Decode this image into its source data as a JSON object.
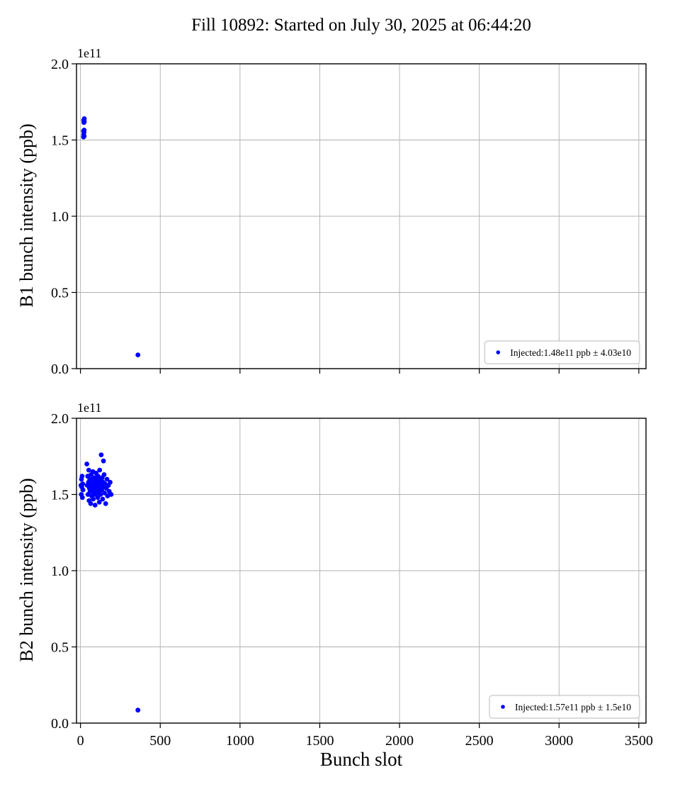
{
  "title": "Fill 10892: Started on July 30, 2025 at 06:44:20",
  "xlabel": "Bunch slot",
  "chart_data": [
    {
      "type": "scatter",
      "ylabel": "B1 bunch intensity (ppb)",
      "offset_text": "1e11",
      "xlim": [
        -25,
        3545
      ],
      "ylim": [
        0,
        2.0
      ],
      "xticks": [
        0,
        500,
        1000,
        1500,
        2000,
        2500,
        3000,
        3500
      ],
      "xtick_labels": [
        "0",
        "500",
        "1000",
        "1500",
        "2000",
        "2500",
        "3000",
        "3500"
      ],
      "yticks": [
        0.0,
        0.5,
        1.0,
        1.5,
        2.0
      ],
      "ytick_labels": [
        "0.0",
        "0.5",
        "1.0",
        "1.5",
        "2.0"
      ],
      "legend_label": "Injected:1.48e11 ppb ± 4.03e10",
      "marker_color": "#0000ff",
      "grid": true,
      "legend_position": "lower right",
      "points": [
        [
          19,
          1.52
        ],
        [
          23,
          1.525
        ],
        [
          20,
          1.535
        ],
        [
          22,
          1.55
        ],
        [
          19,
          1.56
        ],
        [
          23,
          1.565
        ],
        [
          21,
          1.615
        ],
        [
          24,
          1.62
        ],
        [
          20,
          1.63
        ],
        [
          24,
          1.64
        ],
        [
          360,
          0.09
        ]
      ]
    },
    {
      "type": "scatter",
      "ylabel": "B2 bunch intensity (ppb)",
      "offset_text": "1e11",
      "xlim": [
        -25,
        3545
      ],
      "ylim": [
        0,
        2.0
      ],
      "xticks": [
        0,
        500,
        1000,
        1500,
        2000,
        2500,
        3000,
        3500
      ],
      "xtick_labels": [
        "0",
        "500",
        "1000",
        "1500",
        "2000",
        "2500",
        "3000",
        "3500"
      ],
      "yticks": [
        0.0,
        0.5,
        1.0,
        1.5,
        2.0
      ],
      "ytick_labels": [
        "0.0",
        "0.5",
        "1.0",
        "1.5",
        "2.0"
      ],
      "legend_label": "Injected:1.57e11 ppb ± 1.5e10",
      "marker_color": "#0000ff",
      "grid": true,
      "legend_position": "lower right",
      "points": [
        [
          3,
          1.56
        ],
        [
          5,
          1.5
        ],
        [
          6,
          1.6
        ],
        [
          8,
          1.55
        ],
        [
          10,
          1.62
        ],
        [
          12,
          1.48
        ],
        [
          14,
          1.57
        ],
        [
          16,
          1.53
        ],
        [
          40,
          1.7
        ],
        [
          42,
          1.56
        ],
        [
          45,
          1.62
        ],
        [
          47,
          1.5
        ],
        [
          50,
          1.58
        ],
        [
          52,
          1.66
        ],
        [
          54,
          1.46
        ],
        [
          56,
          1.54
        ],
        [
          58,
          1.6
        ],
        [
          60,
          1.52
        ],
        [
          62,
          1.57
        ],
        [
          64,
          1.44
        ],
        [
          66,
          1.63
        ],
        [
          68,
          1.55
        ],
        [
          70,
          1.49
        ],
        [
          72,
          1.6
        ],
        [
          74,
          1.56
        ],
        [
          76,
          1.52
        ],
        [
          78,
          1.65
        ],
        [
          80,
          1.47
        ],
        [
          82,
          1.58
        ],
        [
          84,
          1.54
        ],
        [
          86,
          1.61
        ],
        [
          88,
          1.5
        ],
        [
          90,
          1.56
        ],
        [
          92,
          1.43
        ],
        [
          94,
          1.59
        ],
        [
          96,
          1.53
        ],
        [
          98,
          1.64
        ],
        [
          100,
          1.57
        ],
        [
          102,
          1.51
        ],
        [
          104,
          1.6
        ],
        [
          106,
          1.55
        ],
        [
          108,
          1.48
        ],
        [
          110,
          1.62
        ],
        [
          112,
          1.56
        ],
        [
          114,
          1.52
        ],
        [
          116,
          1.58
        ],
        [
          118,
          1.45
        ],
        [
          120,
          1.66
        ],
        [
          122,
          1.54
        ],
        [
          124,
          1.6
        ],
        [
          126,
          1.5
        ],
        [
          128,
          1.57
        ],
        [
          130,
          1.76
        ],
        [
          133,
          1.53
        ],
        [
          136,
          1.61
        ],
        [
          139,
          1.47
        ],
        [
          142,
          1.58
        ],
        [
          144,
          1.72
        ],
        [
          145,
          1.55
        ],
        [
          148,
          1.63
        ],
        [
          151,
          1.51
        ],
        [
          154,
          1.57
        ],
        [
          158,
          1.44
        ],
        [
          162,
          1.54
        ],
        [
          166,
          1.6
        ],
        [
          170,
          1.49
        ],
        [
          175,
          1.56
        ],
        [
          180,
          1.52
        ],
        [
          186,
          1.58
        ],
        [
          192,
          1.5
        ],
        [
          360,
          0.085
        ]
      ]
    }
  ]
}
